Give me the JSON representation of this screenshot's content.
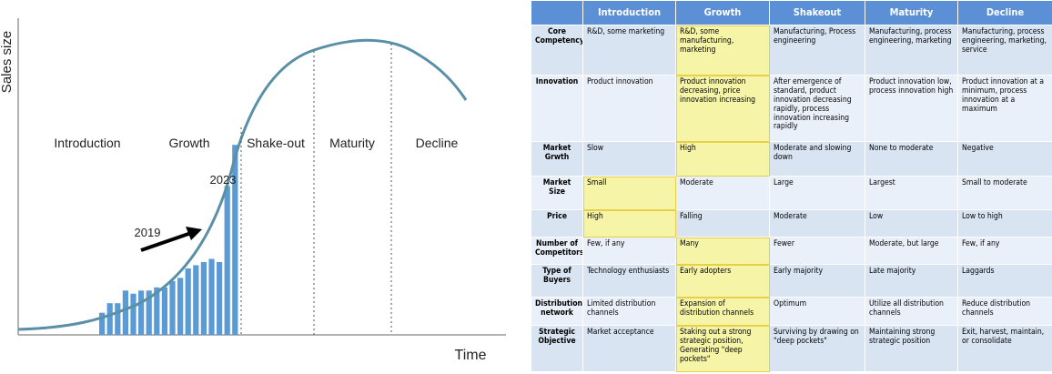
{
  "chart": {
    "y_label": "Sales size",
    "x_label": "Time",
    "phases": [
      "Introduction",
      "Growth",
      "Shake-out",
      "Maturity",
      "Decline"
    ],
    "annotations": [
      "2019",
      "2023"
    ],
    "bars": {
      "values": [
        7,
        10,
        10,
        14,
        13,
        14,
        14,
        15,
        15,
        17,
        18,
        21,
        22,
        23,
        24,
        23,
        47,
        60
      ],
      "ylim": [
        0,
        100
      ],
      "color": "#5b9bd5"
    }
  },
  "table": {
    "header": [
      "Introduction",
      "Growth",
      "Shakeout",
      "Maturity",
      "Decline"
    ],
    "rows": [
      {
        "label": "Core Competency",
        "cells": [
          "R&D, some marketing",
          "R&D, some manufacturing, marketing",
          "Manufacturing, Process engineering",
          "Manufacturing, process engineering, marketing",
          "Manufacturing, process engineering, marketing, service"
        ]
      },
      {
        "label": "Innovation",
        "cells": [
          "Product innovation",
          "Product innovation decreasing, price innovation increasing",
          "After emergence of standard, product innovation decreasing rapidly, process innovation increasing rapidly",
          "Product innovation low, process innovation high",
          "Product innovation at a minimum, process innovation at a maximum"
        ]
      },
      {
        "label": "Market Grwth",
        "cells": [
          "Slow",
          "High",
          "Moderate and slowing down",
          "None to moderate",
          "Negative"
        ]
      },
      {
        "label": "Market Size",
        "cells": [
          "Small",
          "Moderate",
          "Large",
          "Largest",
          "Small to moderate"
        ]
      },
      {
        "label": "Price",
        "cells": [
          "High",
          "Falling",
          "Moderate",
          "Low",
          "Low to high"
        ]
      },
      {
        "label": "Number of Competitors",
        "cells": [
          "Few, if any",
          "Many",
          "Fewer",
          "Moderate, but large",
          "Few, if any"
        ]
      },
      {
        "label": "Type of Buyers",
        "cells": [
          "Technology enthusiasts",
          "Early adopters",
          "Early majority",
          "Late majority",
          "Laggards"
        ]
      },
      {
        "label": "Distribution network",
        "cells": [
          "Limited distribution channels",
          "Expansion of distribution channels",
          "Optimum",
          "Utilize all distribution channels",
          "Reduce distribution channels"
        ]
      },
      {
        "label": "Strategic Objective",
        "cells": [
          "Market acceptance",
          "Staking out a strong strategic position, Generating \"deep pockets\"",
          "Surviving by drawing on \"deep pockets\"",
          "Maintaining strong strategic position",
          "Exit, harvest, maintain, or consolidate"
        ]
      }
    ],
    "highlighted_cells": [
      [
        0,
        1
      ],
      [
        1,
        1
      ],
      [
        2,
        1
      ],
      [
        3,
        0
      ],
      [
        4,
        0
      ],
      [
        5,
        1
      ],
      [
        6,
        1
      ],
      [
        7,
        1
      ],
      [
        8,
        1
      ]
    ]
  }
}
